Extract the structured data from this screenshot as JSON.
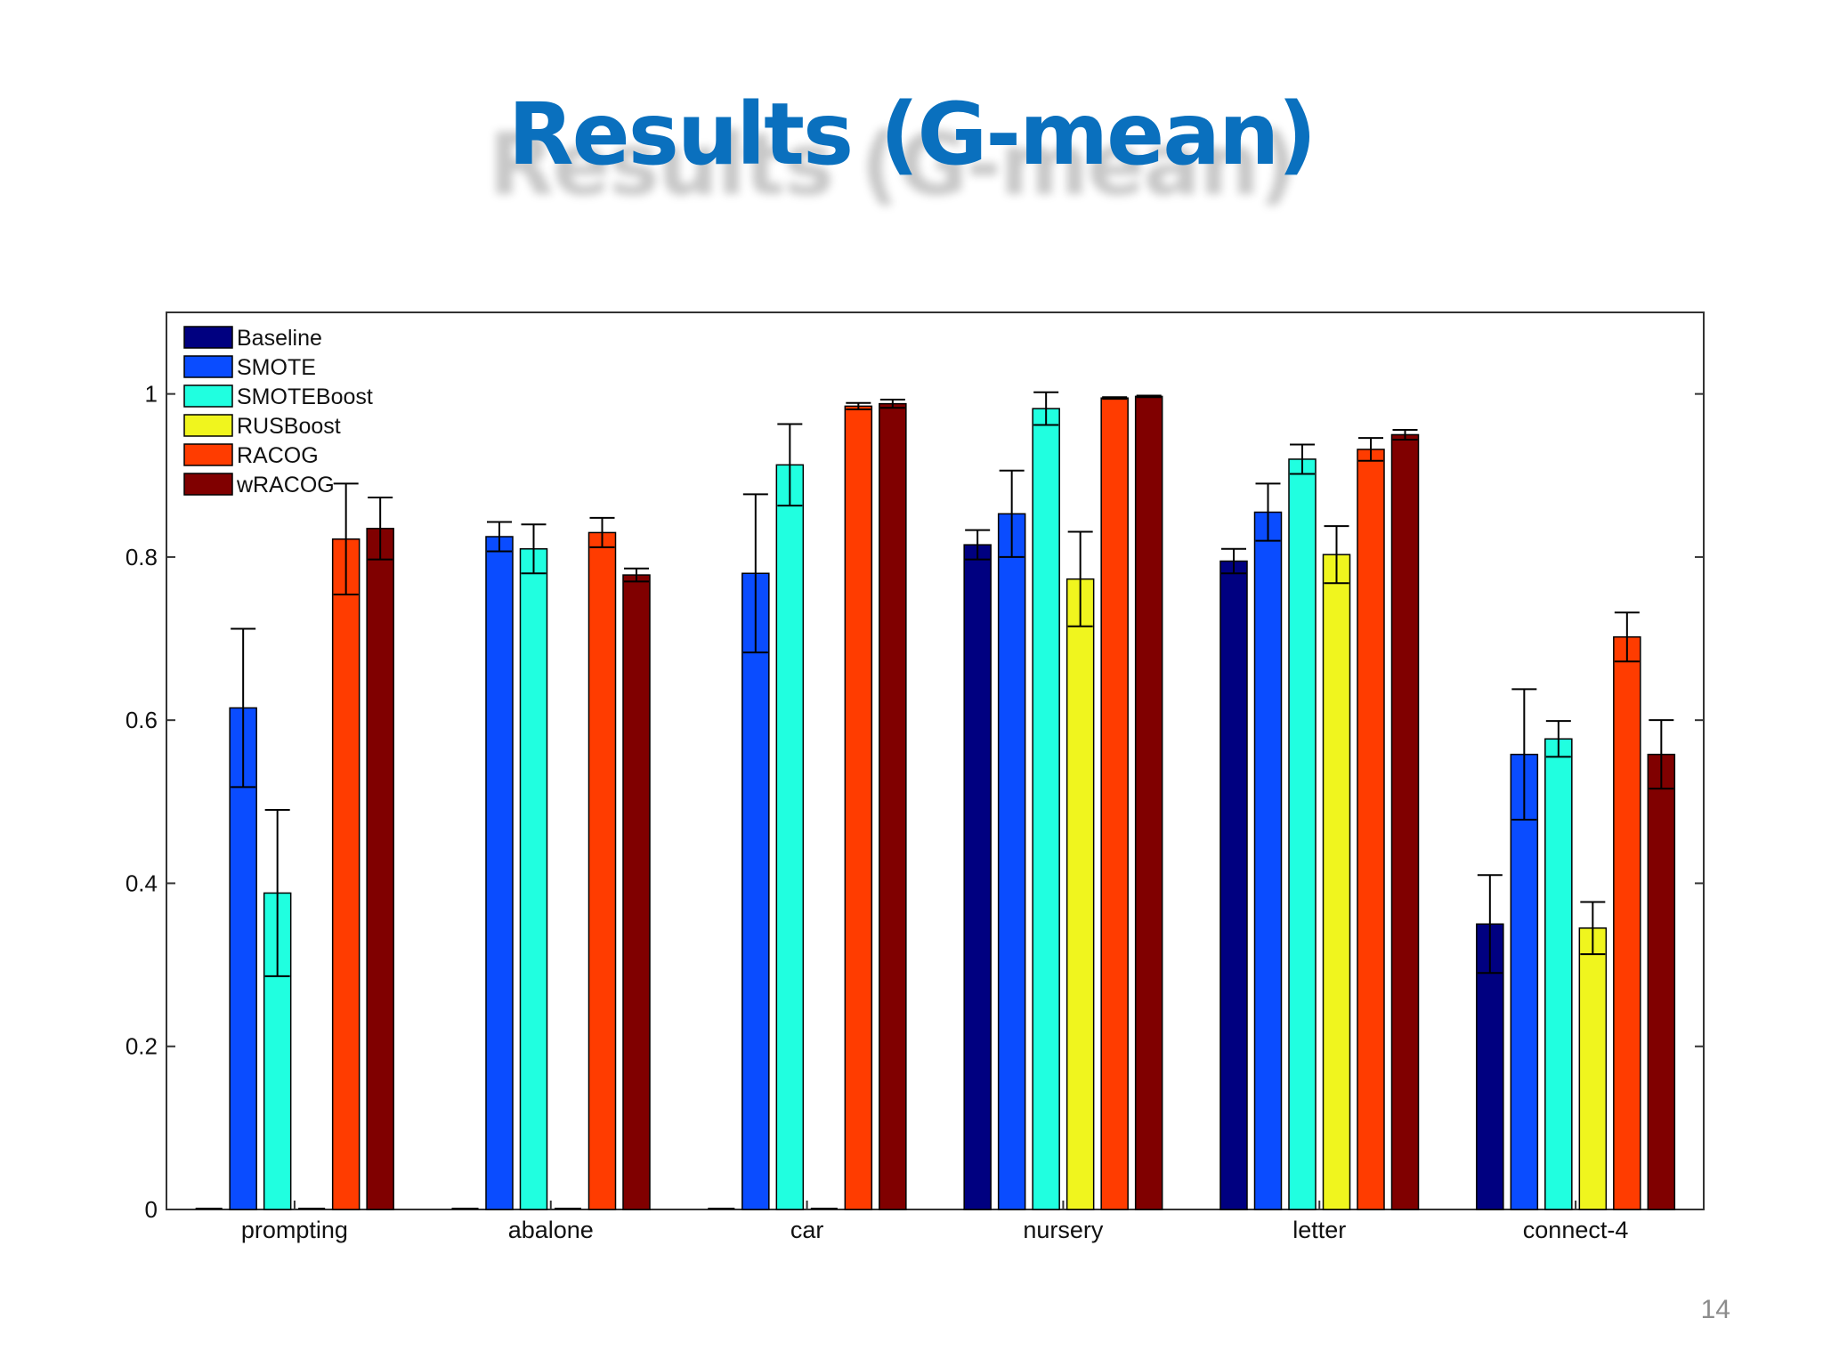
{
  "slide": {
    "title": "Results (G-mean)",
    "page_number": "14"
  },
  "chart_data": {
    "type": "bar",
    "title": "",
    "xlabel": "",
    "ylabel": "",
    "ylim": [
      0,
      1.1
    ],
    "yticks": [
      0,
      0.2,
      0.4,
      0.6,
      0.8,
      1
    ],
    "ytick_labels": [
      "0",
      "0.2",
      "0.4",
      "0.6",
      "0.8",
      "1"
    ],
    "grid": false,
    "legend_position": "top-left",
    "error_bars": true,
    "categories": [
      "prompting",
      "abalone",
      "car",
      "nursery",
      "letter",
      "connect-4"
    ],
    "series": [
      {
        "name": "Baseline",
        "color": "#000080",
        "values": [
          0,
          0,
          0,
          0.815,
          0.795,
          0.35
        ],
        "errors": [
          0,
          0,
          0,
          0.018,
          0.015,
          0.06
        ]
      },
      {
        "name": "SMOTE",
        "color": "#0a4cff",
        "values": [
          0.615,
          0.825,
          0.78,
          0.853,
          0.855,
          0.558
        ],
        "errors": [
          0.097,
          0.018,
          0.097,
          0.053,
          0.035,
          0.08
        ]
      },
      {
        "name": "SMOTEBoost",
        "color": "#20ffe0",
        "values": [
          0.388,
          0.81,
          0.913,
          0.982,
          0.92,
          0.577
        ],
        "errors": [
          0.102,
          0.03,
          0.05,
          0.02,
          0.018,
          0.022
        ]
      },
      {
        "name": "RUSBoost",
        "color": "#f0f51e",
        "values": [
          0,
          0,
          0,
          0.773,
          0.803,
          0.345
        ],
        "errors": [
          0,
          0,
          0,
          0.058,
          0.035,
          0.032
        ]
      },
      {
        "name": "RACOG",
        "color": "#ff3c00",
        "values": [
          0.822,
          0.83,
          0.985,
          0.995,
          0.932,
          0.702
        ],
        "errors": [
          0.068,
          0.018,
          0.004,
          0.001,
          0.014,
          0.03
        ]
      },
      {
        "name": "wRACOG",
        "color": "#800000",
        "values": [
          0.835,
          0.778,
          0.988,
          0.997,
          0.95,
          0.558
        ],
        "errors": [
          0.038,
          0.008,
          0.005,
          0.001,
          0.006,
          0.042
        ]
      }
    ]
  }
}
